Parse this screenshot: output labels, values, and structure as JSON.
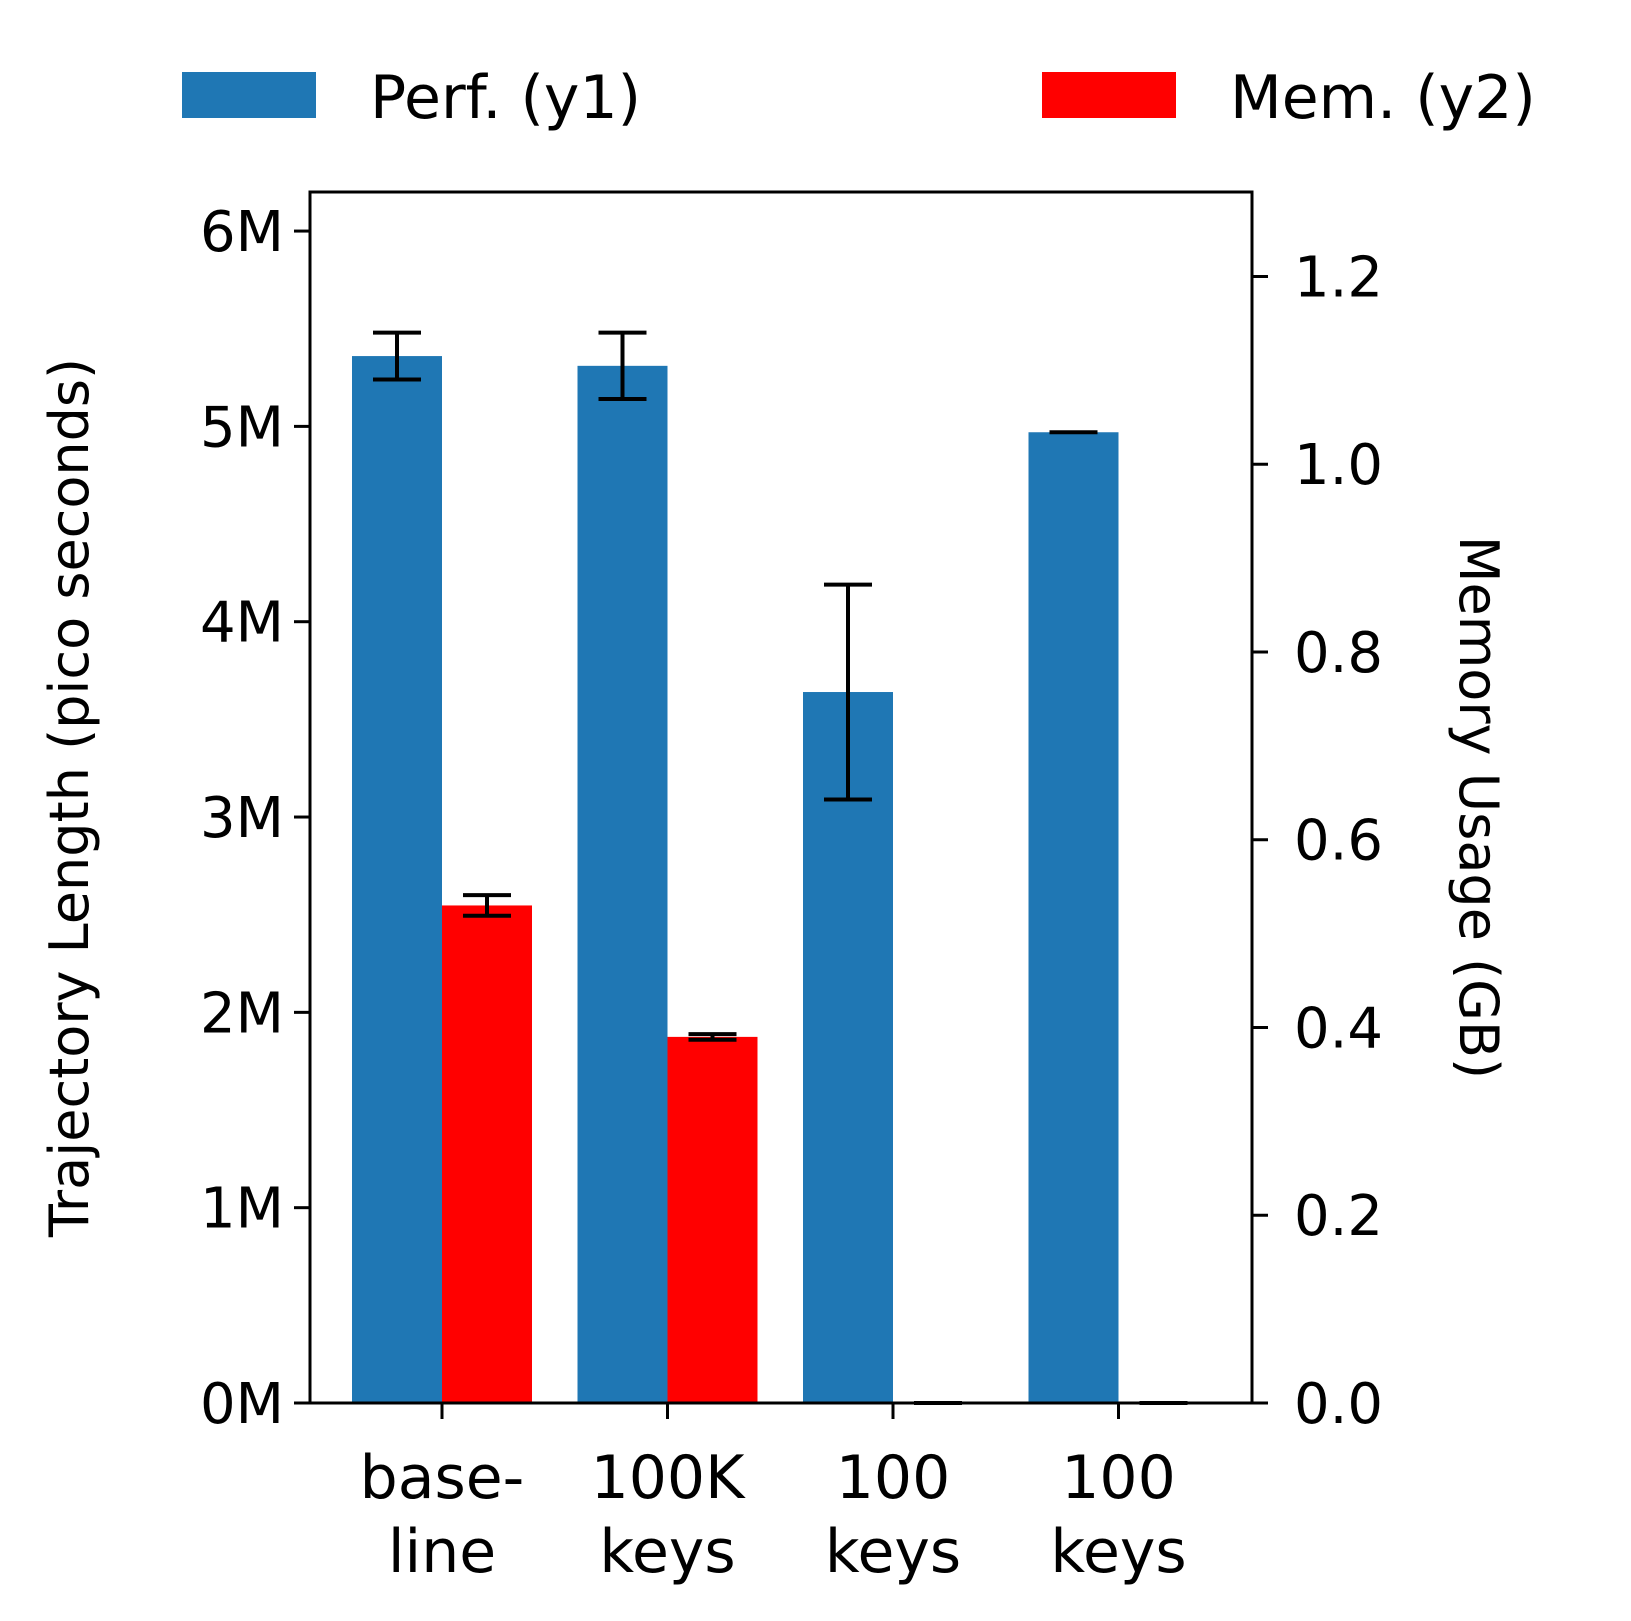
{
  "chart_data": {
    "type": "bar",
    "categories": [
      [
        "base-",
        "line"
      ],
      [
        "100K",
        "keys"
      ],
      [
        "100",
        "keys"
      ],
      [
        "100",
        "keys"
      ]
    ],
    "series": [
      {
        "name": "Perf. (y1)",
        "axis": "y1",
        "color": "#1f77b4",
        "values": [
          5360000,
          5310000,
          3640000,
          4970000
        ],
        "errors": [
          120000,
          170000,
          550000,
          0
        ]
      },
      {
        "name": "Mem. (y2)",
        "axis": "y2",
        "color": "#ff0000",
        "values": [
          0.53,
          0.39,
          0.0,
          0.0
        ],
        "errors": [
          0.011,
          0.003,
          0,
          0
        ]
      }
    ],
    "ylabel": "Trajectory Length (pico seconds)",
    "y2label": "Memory Usage (GB)",
    "ylim": [
      0,
      6200000
    ],
    "y2lim": [
      0,
      1.29
    ],
    "yticks": [
      0,
      1000000,
      2000000,
      3000000,
      4000000,
      5000000,
      6000000
    ],
    "ytick_labels": [
      "0M",
      "1M",
      "2M",
      "3M",
      "4M",
      "5M",
      "6M"
    ],
    "y2ticks": [
      0.0,
      0.2,
      0.4,
      0.6,
      0.8,
      1.0,
      1.2
    ],
    "y2tick_labels": [
      "0.0",
      "0.2",
      "0.4",
      "0.6",
      "0.8",
      "1.0",
      "1.2"
    ],
    "legend": "top, outside plot area",
    "grid": false
  }
}
